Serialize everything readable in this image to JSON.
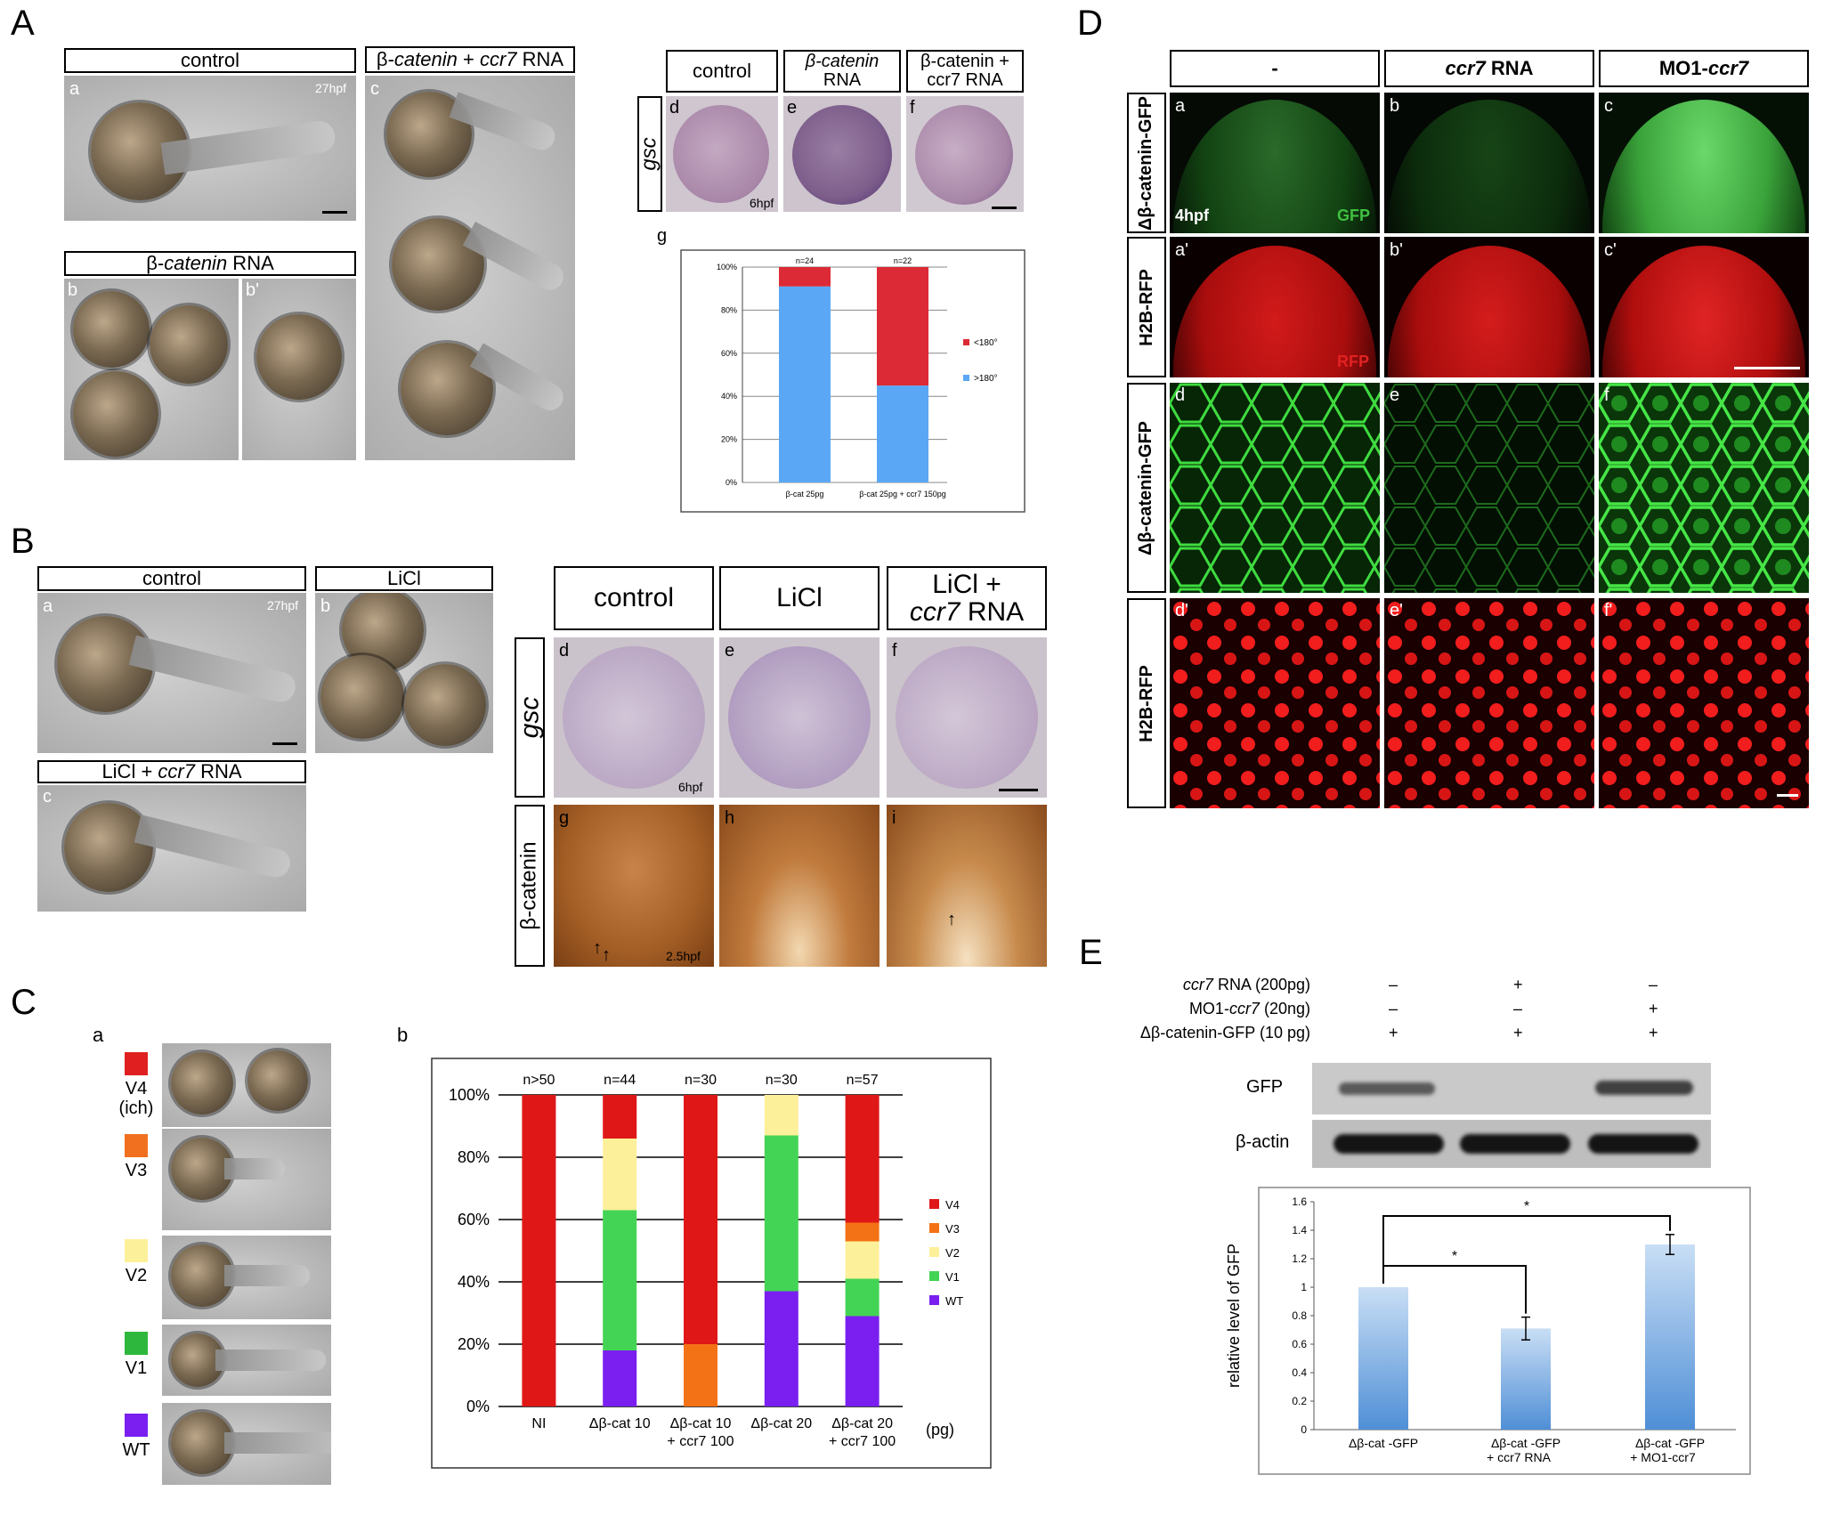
{
  "panelA": {
    "letter": "A",
    "hdr_control": "control",
    "hdr_bcat_ccr7_pre": "β-",
    "hdr_bcat_ccr7_it1": "catenin",
    "hdr_bcat_ccr7_mid": " + ",
    "hdr_bcat_ccr7_it2": "ccr7",
    "hdr_bcat_ccr7_post": " RNA",
    "hdr_bcat_pre": "β-",
    "hdr_bcat_it": "catenin",
    "hdr_bcat_post": " RNA",
    "sub_a": "a",
    "sub_b": "b",
    "sub_b2": "b'",
    "sub_c": "c",
    "stage": "27hpf",
    "gsc_hdr_control": "control",
    "gsc_hdr_bcat_l1": "β-catenin",
    "gsc_hdr_bcat_l2": "RNA",
    "gsc_hdr_bcat_ccr7_l1": "β-catenin +",
    "gsc_hdr_bcat_ccr7_l2": "ccr7 RNA",
    "gsc_row": "gsc",
    "sub_d": "d",
    "sub_e": "e",
    "sub_f": "f",
    "stage_gsc": "6hpf",
    "sub_g": "g"
  },
  "panelB": {
    "letter": "B",
    "hdr_control": "control",
    "hdr_licl": "LiCl",
    "hdr_licl_ccr7_pre": "LiCl + ",
    "hdr_licl_ccr7_it": "ccr7",
    "hdr_licl_ccr7_post": " RNA",
    "sub_a": "a",
    "sub_b": "b",
    "sub_c": "c",
    "stage": "27hpf",
    "col_control": "control",
    "col_licl": "LiCl",
    "col_licl_ccr7_l1": "LiCl +",
    "col_licl_ccr7_l2_it": "ccr7",
    "col_licl_ccr7_l2_post": " RNA",
    "row_gsc": "gsc",
    "row_bcat": "β-catenin",
    "sub_d": "d",
    "sub_e": "e",
    "sub_f": "f",
    "sub_g": "g",
    "sub_h": "h",
    "sub_i": "i",
    "stage_6": "6hpf",
    "stage_25": "2.5hpf"
  },
  "panelC": {
    "letter": "C",
    "sub_a": "a",
    "sub_b": "b",
    "classes": [
      {
        "label": "V4",
        "label2": "(ich)",
        "color": "#e02020"
      },
      {
        "label": "V3",
        "label2": "",
        "color": "#f07020"
      },
      {
        "label": "V2",
        "label2": "",
        "color": "#fdf09a"
      },
      {
        "label": "V1",
        "label2": "",
        "color": "#2db83d"
      },
      {
        "label": "WT",
        "label2": "",
        "color": "#7a1ff0"
      }
    ]
  },
  "panelD": {
    "letter": "D",
    "col_minus": "-",
    "col_ccr7_it": "ccr7",
    "col_ccr7_post": " RNA",
    "col_mo_pre": "MO1-",
    "col_mo_it": "ccr7",
    "row1": "Δβ-catenin-GFP",
    "row2": "H2B-RFP",
    "row3": "Δβ-catenin-GFP",
    "row4": "H2B-RFP",
    "subs_r1": [
      "a",
      "b",
      "c"
    ],
    "subs_r2": [
      "a'",
      "b'",
      "c'"
    ],
    "subs_r3": [
      "d",
      "e",
      "f"
    ],
    "subs_r4": [
      "d'",
      "e'",
      "f'"
    ],
    "stage": "4hpf",
    "gfp": "GFP",
    "rfp": "RFP"
  },
  "panelE": {
    "letter": "E",
    "row1_it": "ccr7",
    "row1_post": " RNA (200pg)",
    "row2_pre": "MO1-",
    "row2_it": "ccr7",
    "row2_post": " (20ng)",
    "row3": "Δβ-catenin-GFP (10 pg)",
    "signs": [
      [
        "–",
        "+",
        "–"
      ],
      [
        "–",
        "–",
        "+"
      ],
      [
        "+",
        "+",
        "+"
      ]
    ],
    "blot_gfp": "GFP",
    "blot_actin": "β-actin"
  },
  "chart_data": [
    {
      "type": "bar",
      "stacked": true,
      "panel": "A-g",
      "categories": [
        "β-cat 25pg",
        "β-cat 25pg + ccr7 150pg"
      ],
      "n_labels": [
        "n=24",
        "n=22"
      ],
      "series": [
        {
          "name": ">180°",
          "color": "#5aa8f5",
          "values": [
            91,
            45
          ]
        },
        {
          "name": "<180°",
          "color": "#dc2b36",
          "values": [
            9,
            55
          ]
        }
      ],
      "ylim": [
        0,
        100
      ],
      "yticks": [
        "0%",
        "20%",
        "40%",
        "60%",
        "80%",
        "100%"
      ],
      "legend": "right"
    },
    {
      "type": "bar",
      "stacked": true,
      "panel": "C-b",
      "categories": [
        [
          "NI"
        ],
        [
          "Δβ-cat 10"
        ],
        [
          "Δβ-cat 10",
          "+ ccr7 100"
        ],
        [
          "Δβ-cat 20"
        ],
        [
          "Δβ-cat 20",
          "+ ccr7 100"
        ]
      ],
      "n_labels": [
        "n>50",
        "n=44",
        "n=30",
        "n=30",
        "n=57"
      ],
      "unit": "(pg)",
      "series": [
        {
          "name": "WT",
          "color": "#7a1ff0",
          "values": [
            0,
            18,
            0,
            37,
            29
          ]
        },
        {
          "name": "V1",
          "color": "#44d455",
          "values": [
            0,
            45,
            0,
            50,
            12
          ]
        },
        {
          "name": "V2",
          "color": "#fdf09a",
          "values": [
            0,
            23,
            0,
            13,
            12
          ]
        },
        {
          "name": "V3",
          "color": "#f47216",
          "values": [
            0,
            0,
            20,
            0,
            6
          ]
        },
        {
          "name": "V4",
          "color": "#e01717",
          "values": [
            100,
            14,
            80,
            0,
            41
          ]
        }
      ],
      "ylim": [
        0,
        100
      ],
      "yticks": [
        "0%",
        "20%",
        "40%",
        "60%",
        "80%",
        "100%"
      ],
      "legend": "right"
    },
    {
      "type": "bar",
      "panel": "E",
      "categories": [
        [
          "Δβ-cat -GFP"
        ],
        [
          "Δβ-cat -GFP",
          "+ ccr7 RNA"
        ],
        [
          "Δβ-cat -GFP",
          "+ MO1-ccr7"
        ]
      ],
      "values": [
        1.0,
        0.71,
        1.3
      ],
      "errors": [
        0.01,
        0.08,
        0.07
      ],
      "ylabel": "relative level of GFP",
      "ylim": [
        0,
        1.6
      ],
      "yticks": [
        "0",
        "0.2",
        "0.4",
        "0.6",
        "0.8",
        "1",
        "1.2",
        "1.4",
        "1.6"
      ],
      "significance": [
        {
          "from": 0,
          "to": 1,
          "label": "*"
        },
        {
          "from": 0,
          "to": 2,
          "label": "*"
        }
      ]
    }
  ]
}
